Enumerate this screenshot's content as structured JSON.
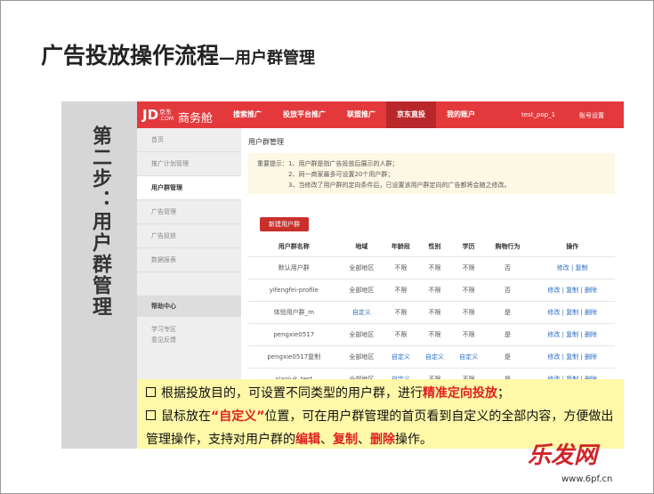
{
  "title": "广告投放操作流程",
  "subtitle": "—用户群管理",
  "step_label": "第二步：用户群管理",
  "screen": {
    "logo": "JD",
    "logo_cn": "京东",
    "logo_com": ".COM",
    "product": "商务舱",
    "nav": [
      {
        "label": "搜索推广"
      },
      {
        "label": "投放平台推广"
      },
      {
        "label": "联盟推广"
      },
      {
        "label": "京东直投",
        "active": true
      },
      {
        "label": "我的账户"
      }
    ],
    "user": "test_pop_1",
    "account": "账号设置",
    "sidebar": [
      {
        "label": "首页"
      },
      {
        "label": "推广计划管理"
      },
      {
        "label": "用户群管理",
        "active": true
      },
      {
        "label": "广告管理"
      },
      {
        "label": "广告投放"
      },
      {
        "label": "数据报表"
      }
    ],
    "help": "帮助中心",
    "help_links": [
      "学习专区",
      "意见反馈"
    ],
    "page_title": "用户群管理",
    "notice_label": "重要提示：",
    "notices": [
      "1、用户群是指广告投放后展示的人群；",
      "2、同一商家最多可设置20个用户群；",
      "3、当修改了用户群的定向条件后，已设置该用户群定向的广告都将会随之修改。"
    ],
    "new_button": "新建用户群",
    "table": {
      "columns": [
        "用户群名称",
        "地域",
        "年龄段",
        "性别",
        "学历",
        "购物行为",
        "操作"
      ],
      "rows": [
        {
          "cells": [
            "默认用户群",
            "全部地区",
            "不限",
            "不限",
            "不限",
            "否"
          ],
          "ops": [
            "修改",
            "复制"
          ]
        },
        {
          "cells": [
            "yifengfei-profile",
            "全部地区",
            "不限",
            "不限",
            "不限",
            "否"
          ],
          "ops": [
            "修改",
            "复制",
            "删除"
          ]
        },
        {
          "cells": [
            "体验用户群_m",
            {
              "text": "自定义",
              "link": true
            },
            "不限",
            "不限",
            "不限",
            "是"
          ],
          "ops": [
            "修改",
            "复制",
            "删除"
          ]
        },
        {
          "cells": [
            "pengxie0517",
            "全部地区",
            "不限",
            "不限",
            "不限",
            "是"
          ],
          "ops": [
            "修改",
            "复制",
            "删除"
          ]
        },
        {
          "cells": [
            "pengxie0517复制",
            "全部地区",
            {
              "text": "自定义",
              "link": true
            },
            {
              "text": "自定义",
              "link": true
            },
            {
              "text": "自定义",
              "link": true
            },
            "是"
          ],
          "ops": [
            "修改",
            "复制",
            "删除"
          ]
        },
        {
          "cells": [
            "xiaojuk_test",
            "全部地区",
            {
              "text": "自定义",
              "link": true
            },
            "不限",
            "不限",
            "是"
          ],
          "ops": [
            "修改",
            "复制",
            "删除"
          ]
        }
      ]
    }
  },
  "notes": [
    [
      {
        "text": "根据投放目的，可设置不同类型的用户群，进行"
      },
      {
        "text": "精准定向投放",
        "em": true
      },
      {
        "text": "；"
      }
    ],
    [
      {
        "text": "鼠标放在"
      },
      {
        "text": "“自定义”",
        "em": true
      },
      {
        "text": "位置，可在用户群管理的首页看到自定义的全部内容，方便做出管理操作，支持对用户群的"
      },
      {
        "text": "编辑",
        "em": true
      },
      {
        "text": "、"
      },
      {
        "text": "复制",
        "em": true
      },
      {
        "text": "、"
      },
      {
        "text": "删除",
        "em": true
      },
      {
        "text": "操作。"
      }
    ]
  ],
  "watermark": {
    "brand": "乐发网",
    "url": "www.6pf.cn"
  }
}
